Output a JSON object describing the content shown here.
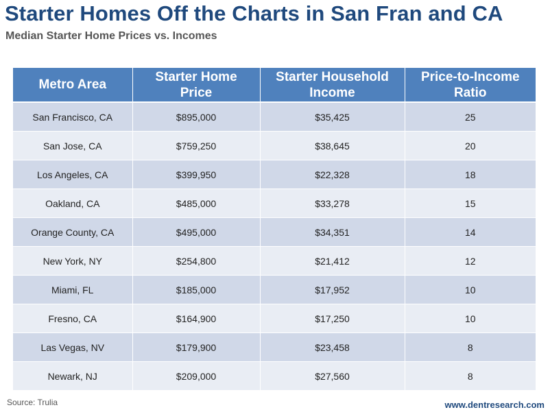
{
  "title": "Starter Homes Off the Charts in San Fran and CA",
  "subtitle": "Median Starter Home Prices vs. Incomes",
  "colors": {
    "title": "#1f497d",
    "header_bg": "#4f81bd",
    "row_odd": "#d0d8e8",
    "row_even": "#e9edf4"
  },
  "table": {
    "headers": [
      [
        "Metro Area"
      ],
      [
        "Starter Home",
        "Price"
      ],
      [
        "Starter Household",
        "Income"
      ],
      [
        "Price-to-Income",
        "Ratio"
      ]
    ],
    "rows": [
      [
        "San Francisco, CA",
        "$895,000",
        "$35,425",
        "25"
      ],
      [
        "San Jose, CA",
        "$759,250",
        "$38,645",
        "20"
      ],
      [
        "Los Angeles, CA",
        "$399,950",
        "$22,328",
        "18"
      ],
      [
        "Oakland, CA",
        "$485,000",
        "$33,278",
        "15"
      ],
      [
        "Orange County, CA",
        "$495,000",
        "$34,351",
        "14"
      ],
      [
        "New York, NY",
        "$254,800",
        "$21,412",
        "12"
      ],
      [
        "Miami, FL",
        "$185,000",
        "$17,952",
        "10"
      ],
      [
        "Fresno, CA",
        "$164,900",
        "$17,250",
        "10"
      ],
      [
        "Las Vegas, NV",
        "$179,900",
        "$23,458",
        "8"
      ],
      [
        "Newark, NJ",
        "$209,000",
        "$27,560",
        "8"
      ]
    ]
  },
  "source": "Source: Trulia",
  "website": "www.dentresearch.com"
}
